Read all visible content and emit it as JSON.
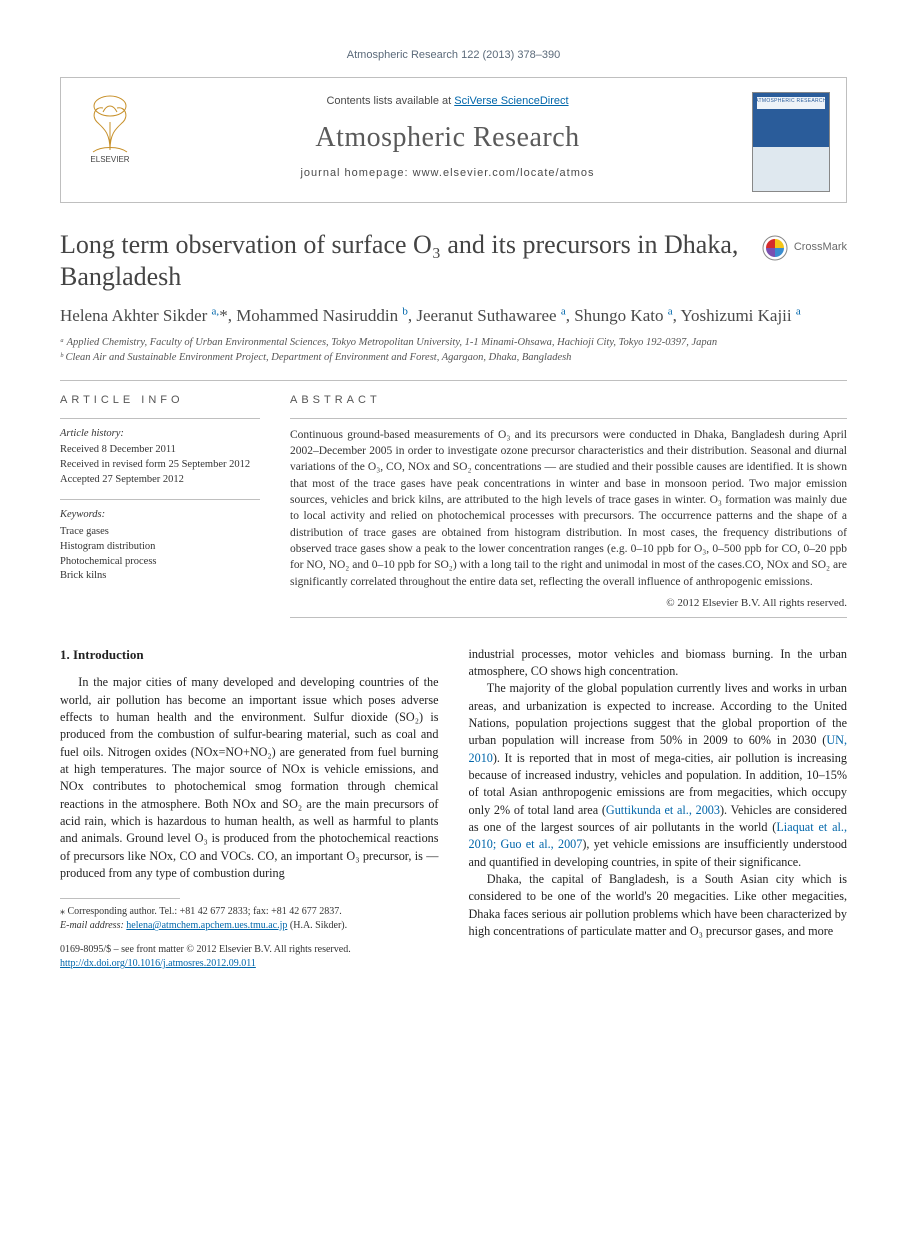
{
  "running_head": "Atmospheric Research 122 (2013) 378–390",
  "masthead": {
    "contents_prefix": "Contents lists available at ",
    "contents_link": "SciVerse ScienceDirect",
    "journal": "Atmospheric Research",
    "homepage_label": "journal homepage: ",
    "homepage": "www.elsevier.com/locate/atmos",
    "publisher_name": "ELSEVIER",
    "cover_label": "ATMOSPHERIC RESEARCH"
  },
  "crossmark_label": "CrossMark",
  "title": "Long term observation of surface O₃ and its precursors in Dhaka, Bangladesh",
  "authors_html": "Helena Akhter Sikder <sup>a,</sup>*, Mohammed Nasiruddin <sup>b</sup>, Jeeranut Suthawaree <sup>a</sup>, Shungo Kato <sup>a</sup>, Yoshizumi Kajii <sup>a</sup>",
  "affiliations": [
    "ᵃ Applied Chemistry, Faculty of Urban Environmental Sciences, Tokyo Metropolitan University, 1-1 Minami-Ohsawa, Hachioji City, Tokyo 192-0397, Japan",
    "ᵇ Clean Air and Sustainable Environment Project, Department of Environment and Forest, Agargaon, Dhaka, Bangladesh"
  ],
  "article_info_heading": "ARTICLE INFO",
  "abstract_heading": "ABSTRACT",
  "history": {
    "label": "Article history:",
    "received": "Received 8 December 2011",
    "revised": "Received in revised form 25 September 2012",
    "accepted": "Accepted 27 September 2012"
  },
  "keywords_label": "Keywords:",
  "keywords": [
    "Trace gases",
    "Histogram distribution",
    "Photochemical process",
    "Brick kilns"
  ],
  "abstract": "Continuous ground-based measurements of O₃ and its precursors were conducted in Dhaka, Bangladesh during April 2002–December 2005 in order to investigate ozone precursor characteristics and their distribution. Seasonal and diurnal variations of the O₃, CO, NOx and SO₂ concentrations — are studied and their possible causes are identified. It is shown that most of the trace gases have peak concentrations in winter and base in monsoon period. Two major emission sources, vehicles and brick kilns, are attributed to the high levels of trace gases in winter. O₃ formation was mainly due to local activity and relied on photochemical processes with precursors. The occurrence patterns and the shape of a distribution of trace gases are obtained from histogram distribution. In most cases, the frequency distributions of observed trace gases show a peak to the lower concentration ranges (e.g. 0–10 ppb for O₃, 0–500 ppb for CO, 0–20 ppb for NO, NO₂ and 0–10 ppb for SO₂) with a long tail to the right and unimodal in most of the cases.CO, NOx and SO₂ are significantly correlated throughout the entire data set, reflecting the overall influence of anthropogenic emissions.",
  "copyright": "© 2012 Elsevier B.V. All rights reserved.",
  "section1_heading": "1. Introduction",
  "para1": "In the major cities of many developed and developing countries of the world, air pollution has become an important issue which poses adverse effects to human health and the environment. Sulfur dioxide (SO₂) is produced from the combustion of sulfur-bearing material, such as coal and fuel oils. Nitrogen oxides (NOx=NO+NO₂) are generated from fuel burning at high temperatures. The major source of NOx is vehicle emissions, and NOx contributes to photochemical smog formation through chemical reactions in the atmosphere. Both NOx and SO₂ are the main precursors of acid rain, which is hazardous to human health, as well as harmful to plants and animals. Ground level O₃ is produced from the photochemical reactions of precursors like NOx, CO and VOCs. CO, an important O₃ precursor, is — produced from any type of combustion during",
  "para1b": "industrial processes, motor vehicles and biomass burning. In the urban atmosphere, CO shows high concentration.",
  "para2": "The majority of the global population currently lives and works in urban areas, and urbanization is expected to increase. According to the United Nations, population projections suggest that the global proportion of the urban population will increase from 50% in 2009 to 60% in 2030 (",
  "para2_ref1": "UN, 2010",
  "para2b": "). It is reported that in most of mega-cities, air pollution is increasing because of increased industry, vehicles and population. In addition, 10–15% of total Asian anthropogenic emissions are from megacities, which occupy only 2% of total land area (",
  "para2_ref2": "Guttikunda et al., 2003",
  "para2c": "). Vehicles are considered as one of the largest sources of air pollutants in the world (",
  "para2_ref3": "Liaquat et al., 2010; Guo et al., 2007",
  "para2d": "), yet vehicle emissions are insufficiently understood and quantified in developing countries, in spite of their significance.",
  "para3": "Dhaka, the capital of Bangladesh, is a South Asian city which is considered to be one of the world's 20 megacities. Like other megacities, Dhaka faces serious air pollution problems which have been characterized by high concentrations of particulate matter and O₃ precursor gases, and more",
  "corresponding": {
    "label": "⁎ Corresponding author. Tel.: +81 42 677 2833; fax: +81 42 677 2837.",
    "email_label": "E-mail address: ",
    "email": "helena@atmchem.apchem.ues.tmu.ac.jp",
    "email_suffix": " (H.A. Sikder)."
  },
  "footer": {
    "issn_line": "0169-8095/$ – see front matter © 2012 Elsevier B.V. All rights reserved.",
    "doi": "http://dx.doi.org/10.1016/j.atmosres.2012.09.011"
  },
  "colors": {
    "link": "#0066aa",
    "text": "#333333",
    "rule": "#bfbfbf",
    "heading_gray": "#555555"
  }
}
